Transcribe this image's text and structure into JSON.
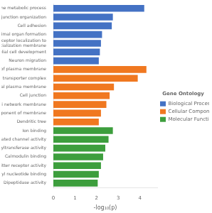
{
  "chart_data": {
    "type": "bar",
    "orientation": "horizontal",
    "categories": [
      "Dipeptidase activity",
      "Adenyl nucleotide binding",
      "Neurotransmitter receptor activity",
      "Calmodulin binding",
      "Acetylglucosaminyltransferase activity",
      "Gated channel activity",
      "Ion binding",
      "Dendritic tree",
      "Intrinsic component of membrane",
      "Trans−Golgi network membrane",
      "Cell junction",
      "Apical plasma membrane",
      "Transmembrane transporter complex",
      "Integral component of plasma membrane",
      "Neuron migration",
      "Columnar/cuboidal epithelial cell development",
      "Neurotransmitter receptor localization to\npostsynaptic specialization membrane",
      "Animal organ formation",
      "Cell adhesion",
      "Cell junction organization",
      "Hormone metabolic process"
    ],
    "series": [
      {
        "name": "Biological Process",
        "color": "#4472c4",
        "values": [
          null,
          null,
          null,
          null,
          null,
          null,
          null,
          null,
          null,
          null,
          null,
          null,
          null,
          null,
          2.1,
          2.15,
          2.2,
          2.25,
          2.7,
          2.75,
          4.2
        ]
      },
      {
        "name": "Cellular Component",
        "color": "#f07820",
        "values": [
          null,
          null,
          null,
          null,
          null,
          null,
          null,
          2.1,
          2.2,
          2.45,
          2.6,
          2.8,
          3.9,
          4.3,
          null,
          null,
          null,
          null,
          null,
          null,
          null
        ]
      },
      {
        "name": "Molecular Function",
        "color": "#3d9e3d",
        "values": [
          2.05,
          2.1,
          2.2,
          2.3,
          2.4,
          2.55,
          2.75,
          null,
          null,
          null,
          null,
          null,
          null,
          null,
          null,
          null,
          null,
          null,
          null,
          null,
          null
        ]
      }
    ],
    "xlabel": "-log₁₀(p)",
    "xlim": [
      0,
      4.8
    ],
    "xticks": [
      0,
      1,
      2,
      3,
      4
    ],
    "legend": "right",
    "legend_title": "Gene Ontology",
    "grid": false
  }
}
